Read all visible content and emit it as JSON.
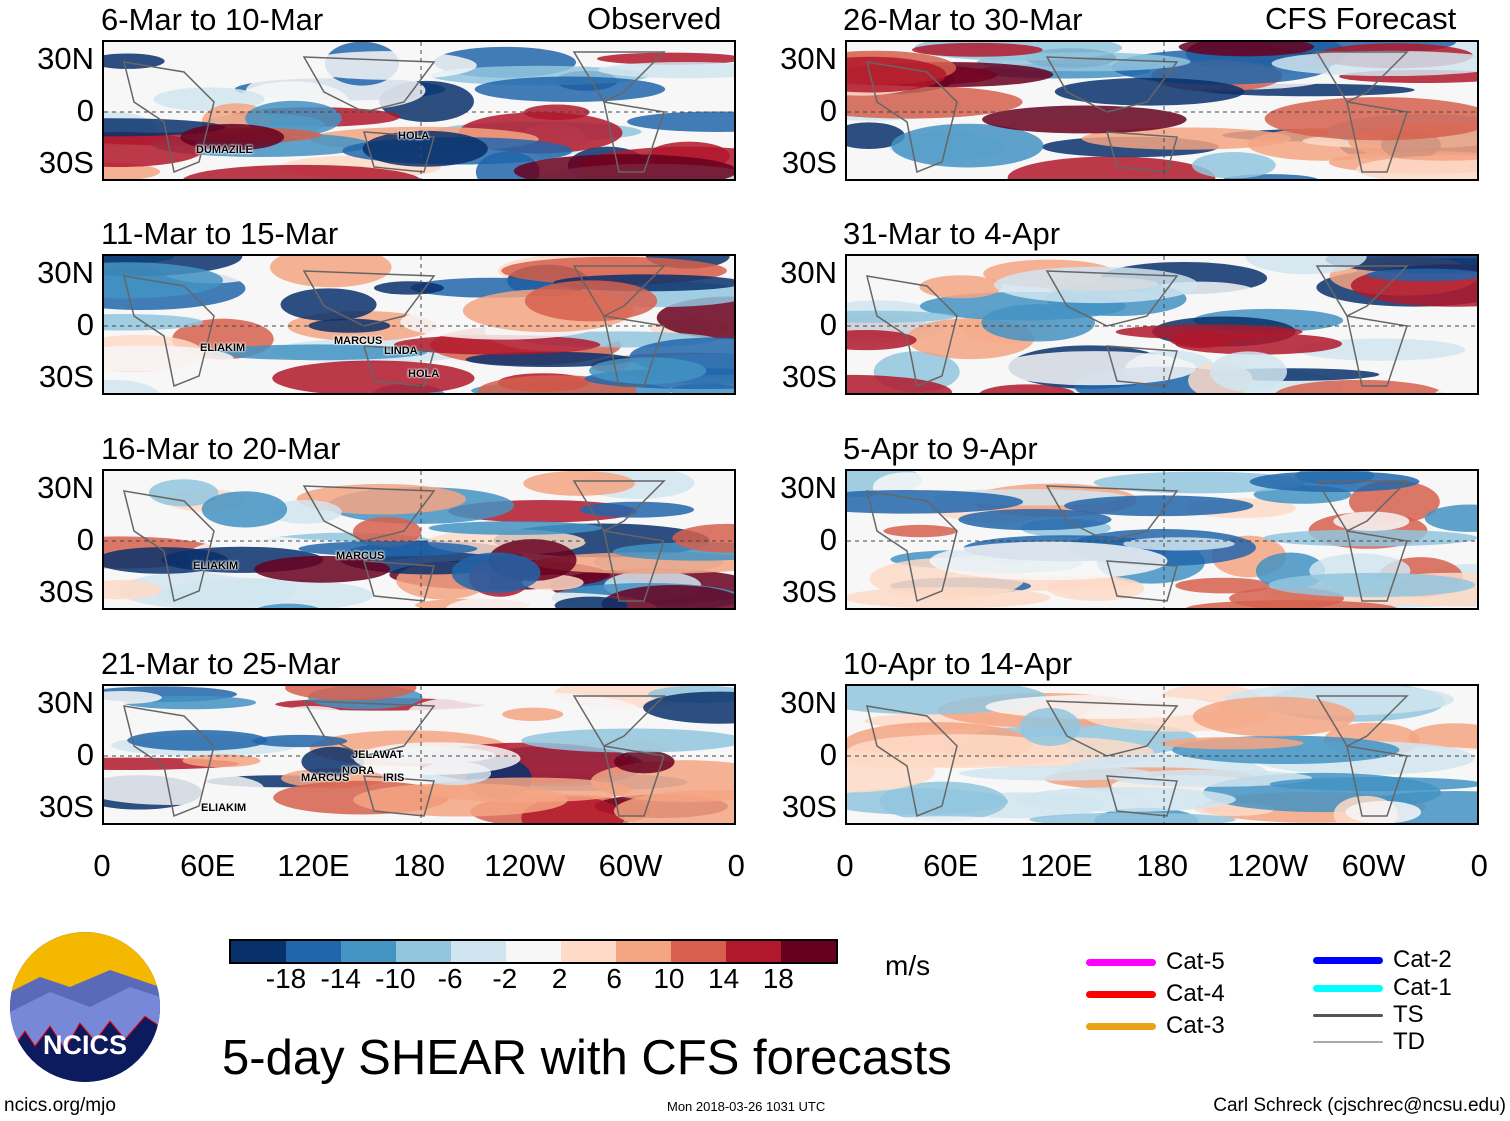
{
  "headers": {
    "observed": "Observed",
    "forecast": "CFS Forecast"
  },
  "panels": [
    {
      "title": "6-Mar to 10-Mar",
      "storms": [
        "DUMAZILE",
        "HOLA"
      ]
    },
    {
      "title": "11-Mar to 15-Mar",
      "storms": [
        "ELIAKIM",
        "MARCUS",
        "LINDA",
        "HOLA"
      ]
    },
    {
      "title": "16-Mar to 20-Mar",
      "storms": [
        "ELIAKIM",
        "MARCUS"
      ]
    },
    {
      "title": "21-Mar to 25-Mar",
      "storms": [
        "JELAWAT",
        "NORA",
        "MARCUS",
        "IRIS",
        "ELIAKIM"
      ]
    },
    {
      "title": "26-Mar to 30-Mar",
      "storms": []
    },
    {
      "title": "31-Mar to 4-Apr",
      "storms": []
    },
    {
      "title": "5-Apr to 9-Apr",
      "storms": []
    },
    {
      "title": "10-Apr to 14-Apr",
      "storms": []
    }
  ],
  "lat_labels": [
    "30N",
    "0",
    "30S"
  ],
  "lon_labels": [
    "0",
    "60E",
    "120E",
    "180",
    "120W",
    "60W",
    "0"
  ],
  "colorbar": {
    "labels": [
      "-18",
      "-14",
      "-10",
      "-6",
      "-2",
      "2",
      "6",
      "10",
      "14",
      "18"
    ],
    "units": "m/s",
    "colors": [
      "#08306b",
      "#2166ac",
      "#4393c3",
      "#92c5de",
      "#d1e5f0",
      "#f7f7f7",
      "#fddbc7",
      "#f4a582",
      "#d6604d",
      "#b2182b",
      "#67001f"
    ]
  },
  "legend": [
    {
      "label": "Cat-5",
      "color": "#ff00ff"
    },
    {
      "label": "Cat-4",
      "color": "#ff0000"
    },
    {
      "label": "Cat-3",
      "color": "#e8a317"
    },
    {
      "label": "Cat-2",
      "color": "#0000ff"
    },
    {
      "label": "Cat-1",
      "color": "#00ffff"
    },
    {
      "label": "TS",
      "color": "#555555"
    },
    {
      "label": "TD",
      "color": "#aaaaaa"
    }
  ],
  "title": "5-day SHEAR with CFS forecasts",
  "logo_text": "NCICS",
  "footer": {
    "left": "ncics.org/mjo",
    "center": "Mon 2018-03-26 1031 UTC",
    "right": "Carl Schreck (cjschrec@ncsu.edu)"
  }
}
